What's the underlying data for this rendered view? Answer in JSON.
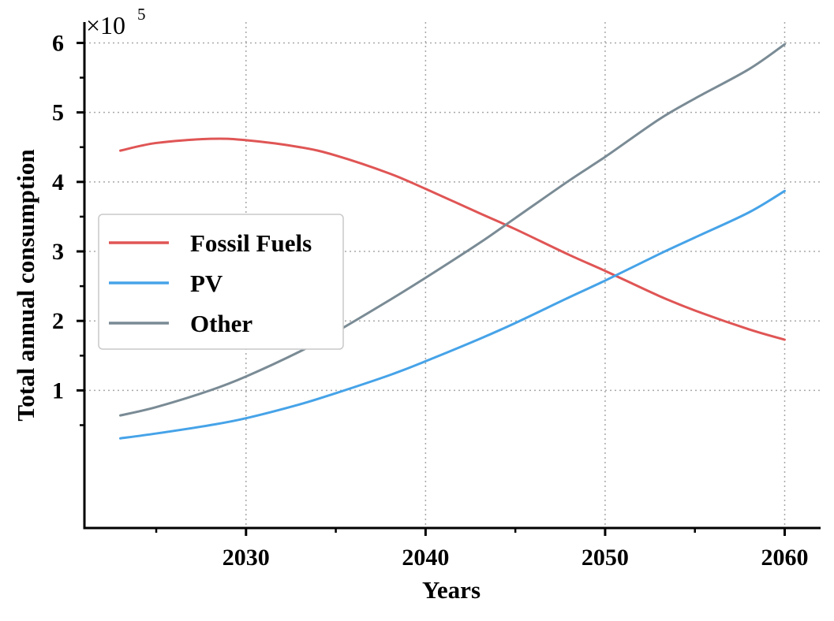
{
  "chart_data": {
    "type": "line",
    "xlabel": "Years",
    "ylabel": "Total annual consumption",
    "y_multiplier": {
      "base": "×10",
      "exponent": "5"
    },
    "xlim": [
      2021,
      2062
    ],
    "ylim": [
      -0.98,
      6.3
    ],
    "x_ticks": [
      2030,
      2040,
      2050,
      2060
    ],
    "x_tick_labels": [
      "2030",
      "2040",
      "2050",
      "2060"
    ],
    "y_ticks": [
      1,
      2,
      3,
      4,
      5,
      6
    ],
    "y_tick_labels": [
      "1",
      "2",
      "3",
      "4",
      "5",
      "6"
    ],
    "grid": true,
    "legend_position": "center-left",
    "series": [
      {
        "name": "Fossil Fuels",
        "color": "#e05555",
        "x": [
          2023,
          2025,
          2028,
          2030,
          2033,
          2035,
          2038,
          2040,
          2043,
          2045,
          2048,
          2050,
          2053,
          2055,
          2058,
          2060
        ],
        "values": [
          4.45,
          4.56,
          4.62,
          4.6,
          4.5,
          4.38,
          4.12,
          3.9,
          3.55,
          3.32,
          2.95,
          2.72,
          2.36,
          2.15,
          1.88,
          1.73
        ]
      },
      {
        "name": "PV",
        "color": "#46a3e8",
        "x": [
          2023,
          2025,
          2028,
          2030,
          2033,
          2035,
          2038,
          2040,
          2043,
          2045,
          2048,
          2050,
          2053,
          2055,
          2058,
          2060
        ],
        "values": [
          0.31,
          0.38,
          0.5,
          0.6,
          0.8,
          0.96,
          1.22,
          1.42,
          1.74,
          1.97,
          2.34,
          2.58,
          2.96,
          3.2,
          3.56,
          3.87
        ]
      },
      {
        "name": "Other",
        "color": "#7a8b95",
        "x": [
          2023,
          2025,
          2028,
          2030,
          2033,
          2035,
          2038,
          2040,
          2043,
          2045,
          2048,
          2050,
          2053,
          2055,
          2058,
          2060
        ],
        "values": [
          0.64,
          0.76,
          1.0,
          1.2,
          1.56,
          1.84,
          2.3,
          2.62,
          3.12,
          3.48,
          4.02,
          4.36,
          4.9,
          5.2,
          5.62,
          5.98
        ]
      }
    ]
  }
}
